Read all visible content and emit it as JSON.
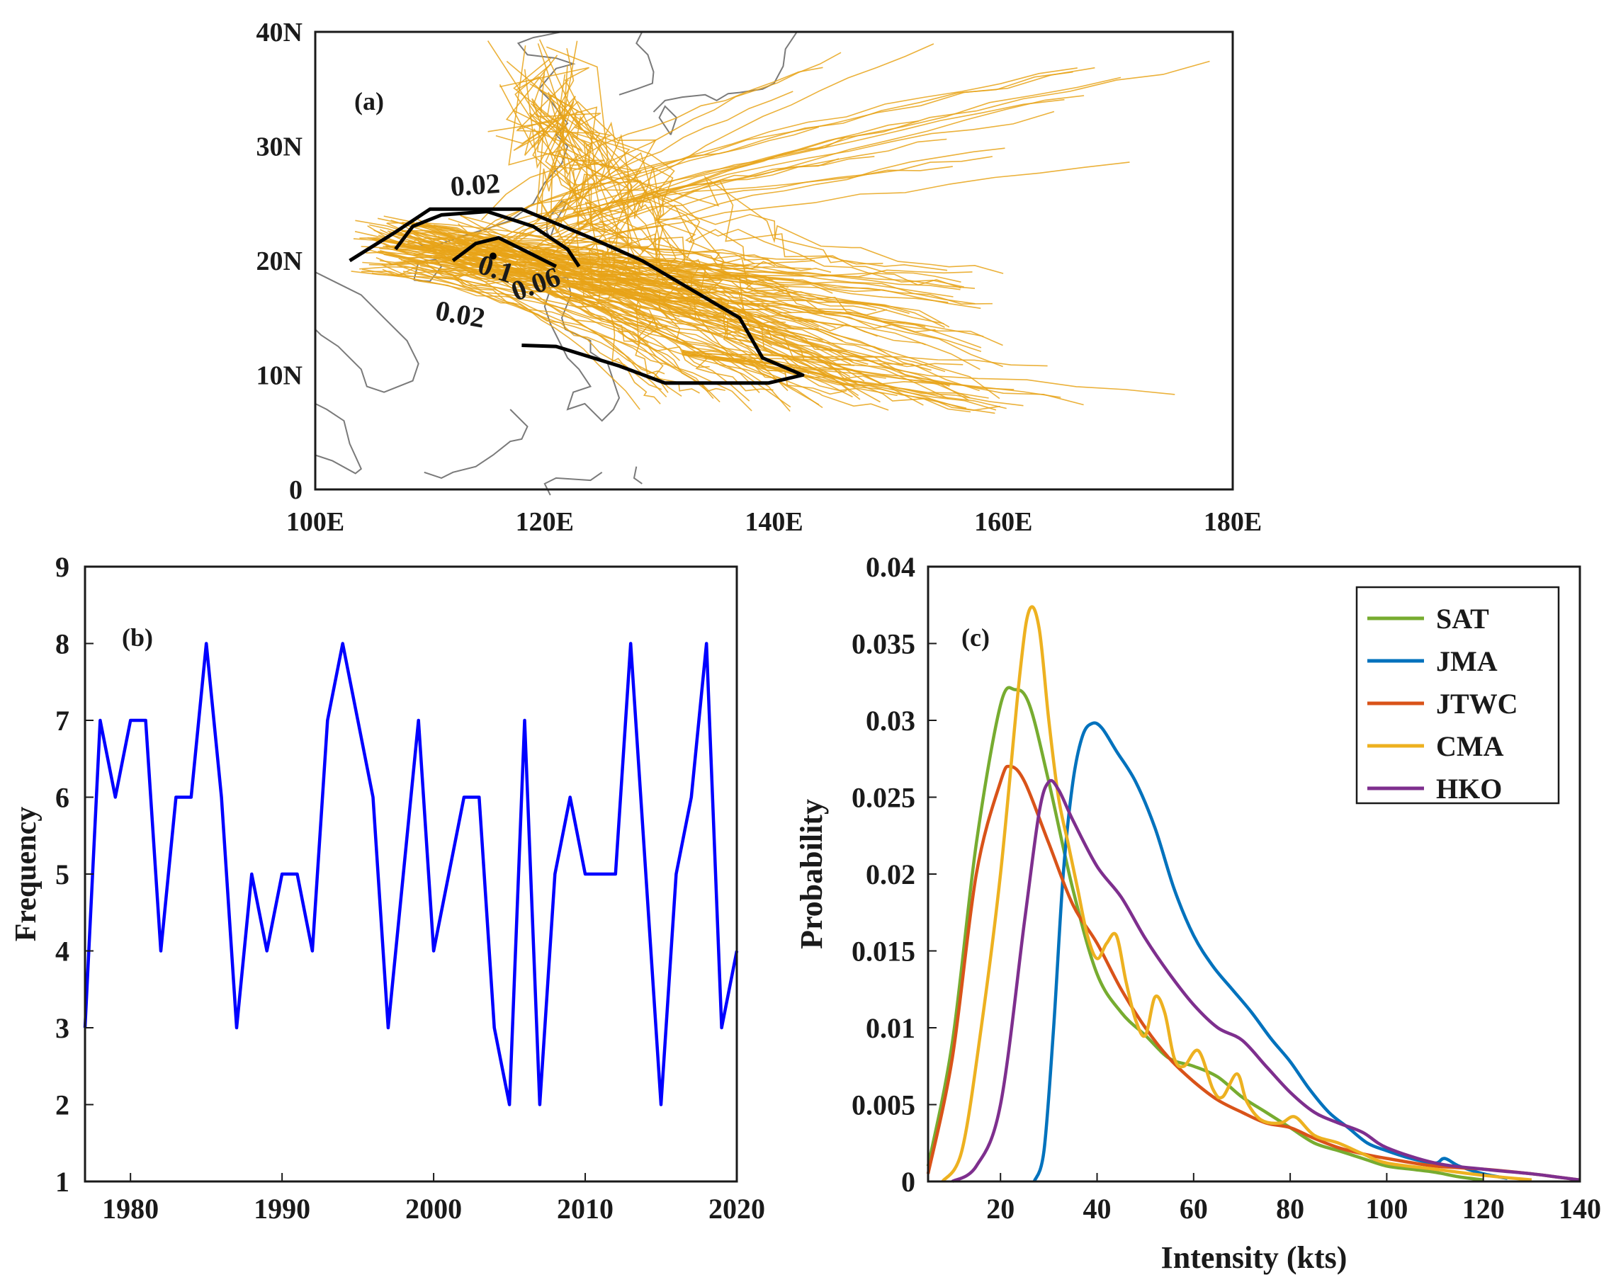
{
  "panels": {
    "a": {
      "label": "(a)"
    },
    "b": {
      "label": "(b)"
    },
    "c": {
      "label": "(c)"
    }
  },
  "chart_data": [
    {
      "panel": "a",
      "type": "contour-map",
      "title": "",
      "xlabel": "",
      "ylabel": "",
      "xlim": [
        100,
        180
      ],
      "ylim": [
        0,
        40
      ],
      "xticks": [
        100,
        120,
        140,
        160,
        180
      ],
      "xtick_labels": [
        "100E",
        "120E",
        "140E",
        "160E",
        "180E"
      ],
      "yticks": [
        0,
        10,
        20,
        30,
        40
      ],
      "ytick_labels": [
        "0",
        "10N",
        "20N",
        "30N",
        "40N"
      ],
      "track_color": "#e8a317",
      "contour_color": "#000000",
      "contours": [
        {
          "level": "0.02",
          "path": [
            [
              103,
              20
            ],
            [
              107,
              22.5
            ],
            [
              110,
              24.5
            ],
            [
              118,
              24.5
            ],
            [
              124,
              22
            ],
            [
              128.5,
              20
            ],
            [
              137,
              15
            ],
            [
              139,
              11.5
            ],
            [
              142.5,
              10
            ],
            [
              139.5,
              9.3
            ],
            [
              135,
              9.3
            ],
            [
              130.5,
              9.3
            ],
            [
              126.5,
              10.8
            ],
            [
              121,
              12.5
            ],
            [
              118,
              12.6
            ]
          ]
        },
        {
          "level": "0.06",
          "path": [
            [
              107,
              21
            ],
            [
              108.5,
              23
            ],
            [
              111,
              24
            ],
            [
              115,
              24.3
            ],
            [
              119,
              23
            ],
            [
              122,
              21
            ],
            [
              123,
              19.5
            ]
          ]
        },
        {
          "level": "0.1",
          "path": [
            [
              112,
              20
            ],
            [
              114,
              21.5
            ],
            [
              116,
              22
            ],
            [
              118,
              21
            ],
            [
              120,
              20
            ],
            [
              121,
              19.5
            ]
          ]
        }
      ],
      "contour_labels": [
        {
          "text": "0.02",
          "lon": 114,
          "lat": 25.8
        },
        {
          "text": "0.02",
          "lon": 112.5,
          "lat": 14.5
        },
        {
          "text": "0.06",
          "lon": 119.5,
          "lat": 17.2
        },
        {
          "text": "0.1",
          "lon": 115.5,
          "lat": 18.5
        }
      ]
    },
    {
      "panel": "b",
      "type": "line",
      "title": "",
      "xlabel": "",
      "ylabel": "Frequency",
      "xlim": [
        1977,
        2020
      ],
      "ylim": [
        1,
        9
      ],
      "xticks": [
        1980,
        1990,
        2000,
        2010,
        2020
      ],
      "yticks": [
        1,
        2,
        3,
        4,
        5,
        6,
        7,
        8,
        9
      ],
      "series": [
        {
          "color": "#0000ff",
          "x": [
            1977,
            1978,
            1979,
            1980,
            1981,
            1982,
            1983,
            1984,
            1985,
            1986,
            1987,
            1988,
            1989,
            1990,
            1991,
            1992,
            1993,
            1994,
            1995,
            1996,
            1997,
            1998,
            1999,
            2000,
            2001,
            2002,
            2003,
            2004,
            2005,
            2006,
            2007,
            2008,
            2009,
            2010,
            2011,
            2012,
            2013,
            2014,
            2015,
            2016,
            2017,
            2018,
            2019,
            2020
          ],
          "values": [
            3,
            7,
            6,
            7,
            7,
            4,
            6,
            6,
            8,
            6,
            3,
            5,
            4,
            5,
            5,
            4,
            7,
            8,
            7,
            6,
            3,
            5,
            7,
            4,
            5,
            6,
            6,
            3,
            2,
            7,
            2,
            5,
            6,
            5,
            5,
            5,
            8,
            5,
            2,
            5,
            6,
            8,
            3,
            4
          ]
        }
      ]
    },
    {
      "panel": "c",
      "type": "line",
      "title": "",
      "xlabel": "Intensity (kts)",
      "ylabel": "Probability",
      "xlim": [
        5,
        140
      ],
      "ylim": [
        0,
        0.04
      ],
      "xticks": [
        20,
        40,
        60,
        80,
        100,
        120,
        140
      ],
      "yticks": [
        0,
        0.005,
        0.01,
        0.015,
        0.02,
        0.025,
        0.03,
        0.035,
        0.04
      ],
      "ytick_labels": [
        "0",
        "0.005",
        "0.01",
        "0.015",
        "0.02",
        "0.025",
        "0.03",
        "0.035",
        "0.04"
      ],
      "legend_position": "top-right",
      "series": [
        {
          "name": "SAT",
          "color": "#77ac30",
          "x": [
            5,
            10,
            15,
            20,
            23,
            26,
            30,
            35,
            40,
            45,
            50,
            55,
            60,
            65,
            70,
            75,
            80,
            85,
            90,
            95,
            100,
            105,
            110,
            115,
            120
          ],
          "values": [
            0.001,
            0.009,
            0.022,
            0.031,
            0.032,
            0.031,
            0.026,
            0.019,
            0.0135,
            0.011,
            0.0095,
            0.008,
            0.0075,
            0.0068,
            0.0055,
            0.0045,
            0.0035,
            0.0025,
            0.002,
            0.0015,
            0.001,
            0.0008,
            0.0006,
            0.0003,
            0.0001
          ]
        },
        {
          "name": "JMA",
          "color": "#0072bd",
          "x": [
            27,
            29,
            31,
            33,
            35,
            37,
            39,
            41,
            44,
            48,
            52,
            56,
            60,
            64,
            68,
            72,
            76,
            80,
            84,
            88,
            92,
            96,
            100,
            105,
            110,
            112,
            115,
            120,
            125
          ],
          "values": [
            0,
            0.002,
            0.01,
            0.02,
            0.026,
            0.029,
            0.0298,
            0.0295,
            0.028,
            0.026,
            0.023,
            0.019,
            0.016,
            0.014,
            0.0125,
            0.011,
            0.0093,
            0.0078,
            0.006,
            0.0045,
            0.0035,
            0.0025,
            0.002,
            0.0015,
            0.0012,
            0.0015,
            0.001,
            0.0005,
            0.0002
          ]
        },
        {
          "name": "JTWC",
          "color": "#d95319",
          "x": [
            5,
            10,
            15,
            20,
            22,
            25,
            30,
            35,
            40,
            45,
            50,
            55,
            60,
            65,
            70,
            75,
            80,
            85,
            90,
            95,
            100,
            110,
            120,
            130,
            135,
            140
          ],
          "values": [
            0.0005,
            0.008,
            0.02,
            0.026,
            0.027,
            0.026,
            0.022,
            0.018,
            0.0155,
            0.0125,
            0.01,
            0.008,
            0.0065,
            0.0053,
            0.0045,
            0.0038,
            0.0035,
            0.0028,
            0.0022,
            0.0018,
            0.0015,
            0.001,
            0.0008,
            0.0005,
            0.0003,
            0.0001
          ]
        },
        {
          "name": "CMA",
          "color": "#edb120",
          "x": [
            8,
            12,
            16,
            20,
            24,
            26,
            28,
            30,
            32,
            34,
            36,
            38,
            40,
            42,
            44,
            46,
            48,
            50,
            52,
            54,
            56,
            58,
            61,
            64,
            66,
            69,
            71,
            74,
            78,
            81,
            85,
            90,
            95,
            100,
            110,
            120,
            130
          ],
          "values": [
            0,
            0.002,
            0.01,
            0.02,
            0.033,
            0.0372,
            0.036,
            0.03,
            0.025,
            0.022,
            0.019,
            0.016,
            0.0145,
            0.0155,
            0.016,
            0.013,
            0.0105,
            0.0095,
            0.012,
            0.011,
            0.008,
            0.0075,
            0.0085,
            0.006,
            0.0055,
            0.007,
            0.0052,
            0.004,
            0.0038,
            0.0042,
            0.003,
            0.0025,
            0.0018,
            0.0012,
            0.0008,
            0.0004,
            0.0001
          ]
        },
        {
          "name": "HKO",
          "color": "#7e2f8e",
          "x": [
            10,
            15,
            20,
            25,
            28,
            30,
            32,
            35,
            40,
            45,
            50,
            55,
            60,
            65,
            70,
            75,
            80,
            85,
            90,
            95,
            100,
            110,
            120,
            130,
            135,
            140
          ],
          "values": [
            0,
            0.001,
            0.005,
            0.017,
            0.024,
            0.026,
            0.0255,
            0.0235,
            0.0205,
            0.0185,
            0.0158,
            0.0135,
            0.0115,
            0.01,
            0.0092,
            0.0075,
            0.0058,
            0.0045,
            0.0038,
            0.0032,
            0.0022,
            0.0012,
            0.0008,
            0.0005,
            0.0003,
            0.0001
          ]
        }
      ]
    }
  ]
}
